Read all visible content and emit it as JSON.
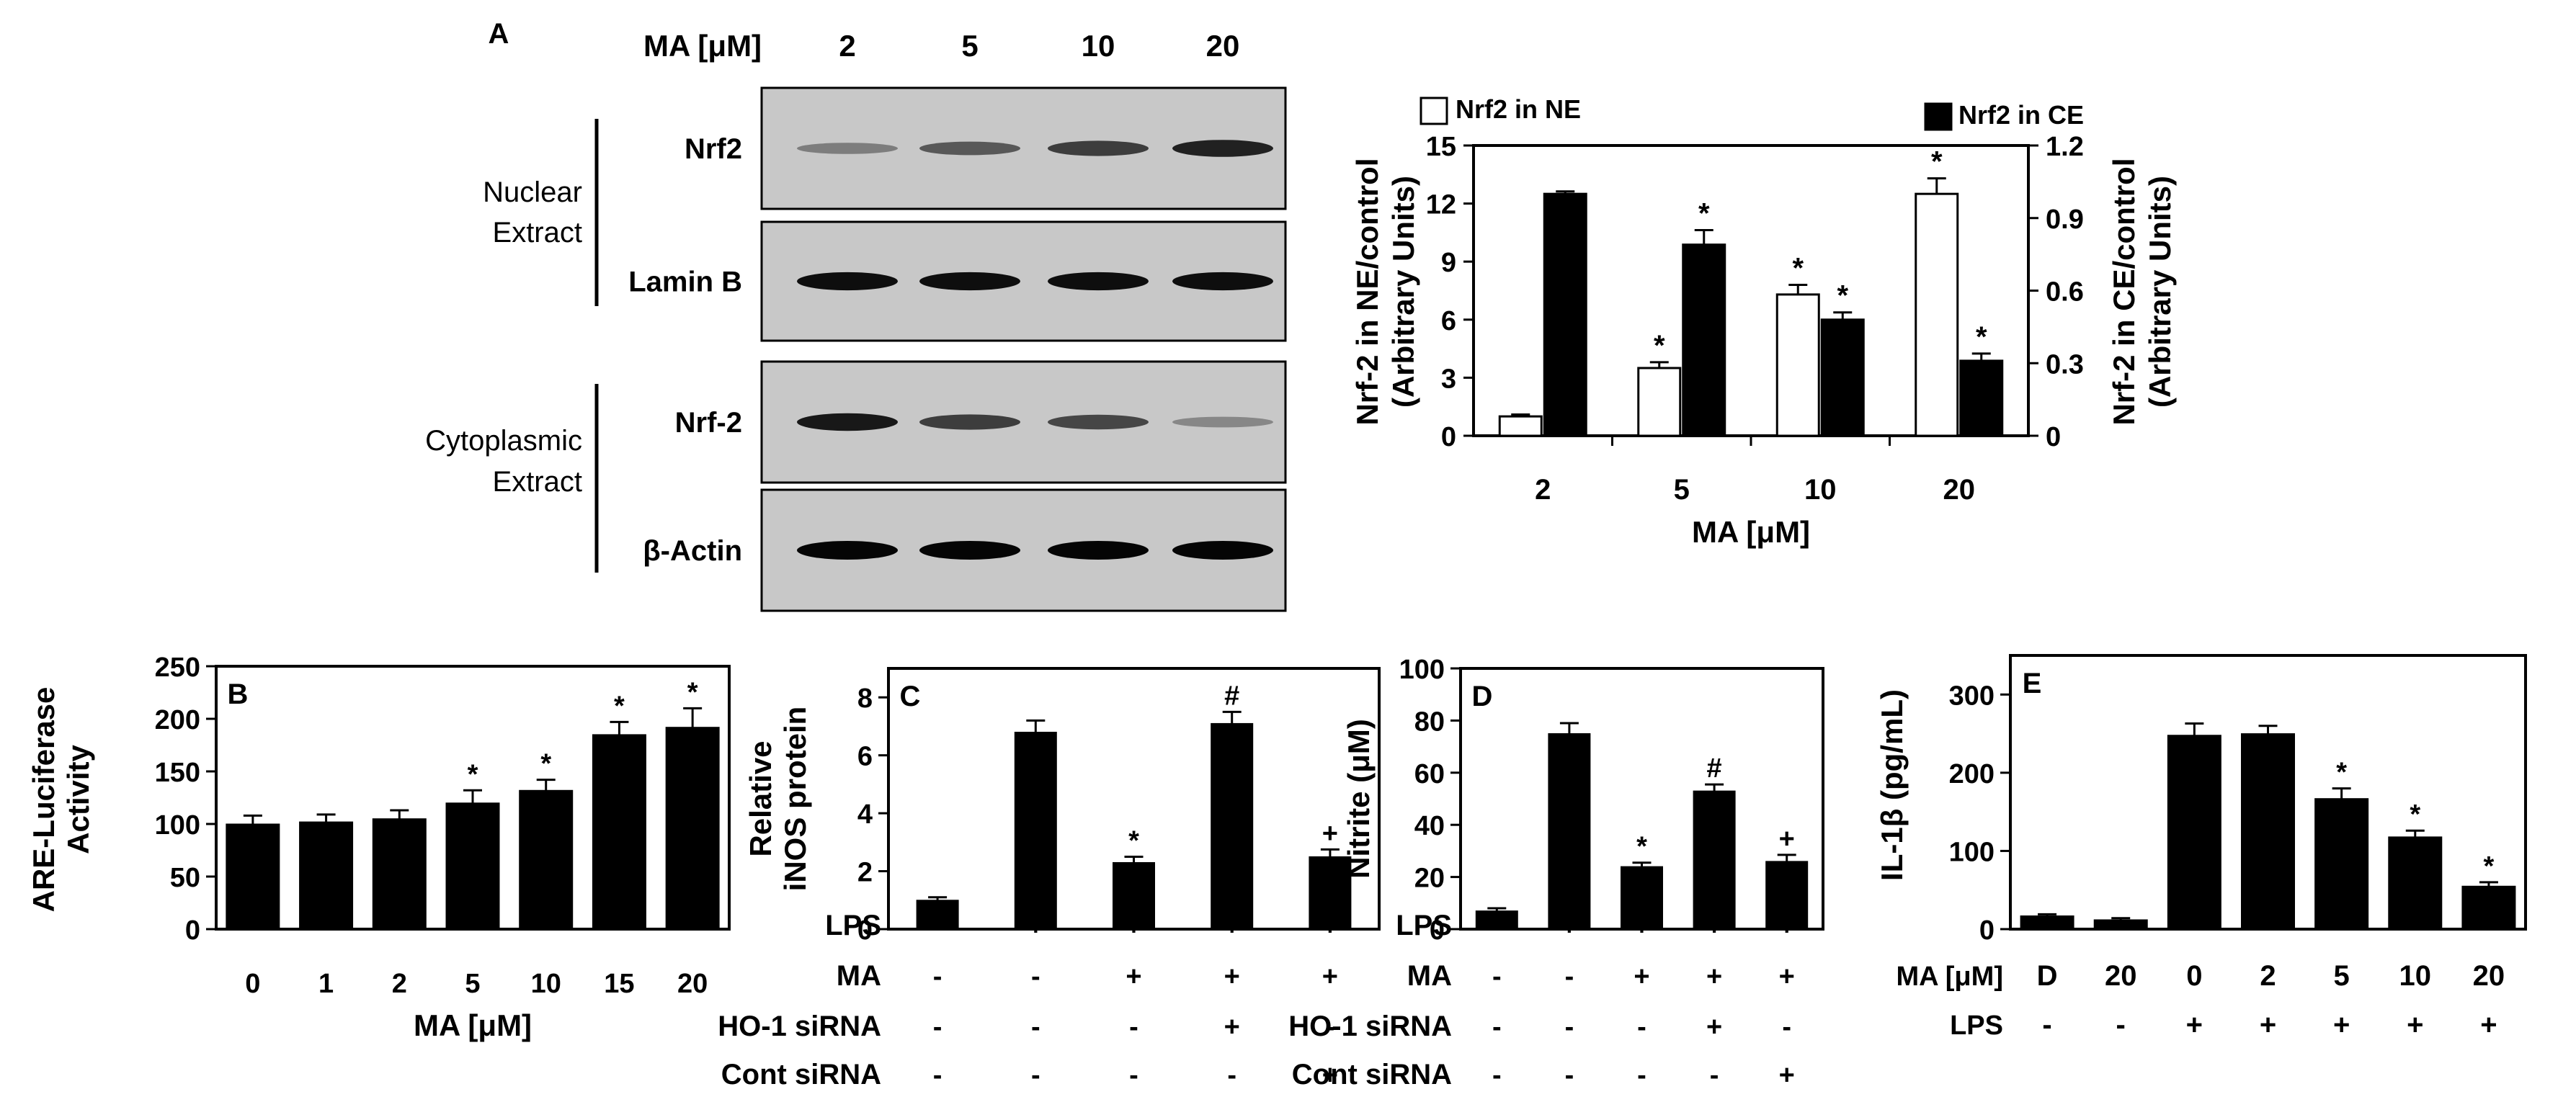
{
  "panel_a": {
    "label": "A",
    "lane_header_label": "MA [μM]",
    "lanes": [
      "2",
      "5",
      "10",
      "20"
    ],
    "nuclear_group": [
      "Nuclear",
      "Extract"
    ],
    "cyto_group": [
      "Cytoplasmic",
      "Extract"
    ],
    "blots": [
      {
        "label": "Nrf2",
        "intensity": [
          0.35,
          0.55,
          0.7,
          0.85
        ]
      },
      {
        "label": "Lamin B",
        "intensity": [
          0.95,
          0.95,
          0.95,
          0.95
        ]
      },
      {
        "label": "Nrf-2",
        "intensity": [
          0.9,
          0.7,
          0.65,
          0.3
        ]
      },
      {
        "label": "β-Actin",
        "intensity": [
          1.0,
          1.0,
          1.0,
          1.0
        ]
      }
    ]
  },
  "chart_data": [
    {
      "type": "bar",
      "id": "nrf2",
      "xlabel": "MA [μM]",
      "categories": [
        "2",
        "5",
        "10",
        "20"
      ],
      "ylabel_left": [
        "Nrf-2 in NE/control",
        "(Arbitrary Units)"
      ],
      "ylabel_right": [
        "Nrf-2 in CE/control",
        "(Arbitrary Units)"
      ],
      "ylim_left": [
        0,
        15
      ],
      "yticks_left": [
        "0",
        "3",
        "6",
        "9",
        "12",
        "15"
      ],
      "ylim_right": [
        0,
        1.2
      ],
      "yticks_right": [
        "0",
        "0.3",
        "0.6",
        "0.9",
        "1.2"
      ],
      "series": [
        {
          "name": "Nrf2 in NE",
          "axis": "left",
          "fill": "#ffffff",
          "values": [
            1.0,
            3.5,
            7.3,
            12.5
          ],
          "errors": [
            0.1,
            0.3,
            0.5,
            0.8
          ],
          "sig": [
            "",
            "*",
            "*",
            "*"
          ]
        },
        {
          "name": "Nrf2 in CE",
          "axis": "right",
          "fill": "#000000",
          "values": [
            1.0,
            0.79,
            0.48,
            0.31
          ],
          "errors": [
            0.01,
            0.06,
            0.03,
            0.03
          ],
          "sig": [
            "",
            "*",
            "*",
            "*"
          ]
        }
      ]
    },
    {
      "type": "bar",
      "id": "B",
      "panel_label": "B",
      "ylabel": [
        "ARE-Luciferase",
        "Activity"
      ],
      "xlabel": "MA [μM]",
      "categories": [
        "0",
        "1",
        "2",
        "5",
        "10",
        "15",
        "20"
      ],
      "values": [
        100,
        102,
        105,
        120,
        132,
        185,
        192
      ],
      "errors": [
        8,
        7,
        8,
        12,
        10,
        12,
        18
      ],
      "sig": [
        "",
        "",
        "",
        "*",
        "*",
        "*",
        "*"
      ],
      "ylim": [
        0,
        250
      ],
      "yticks": [
        "0",
        "50",
        "100",
        "150",
        "200",
        "250"
      ]
    },
    {
      "type": "bar",
      "id": "C",
      "panel_label": "C",
      "ylabel": [
        "Relative",
        "iNOS protein"
      ],
      "values": [
        1.0,
        6.8,
        2.3,
        7.1,
        2.5
      ],
      "errors": [
        0.1,
        0.4,
        0.2,
        0.4,
        0.25
      ],
      "sig": [
        "",
        "",
        "*",
        "#",
        "+"
      ],
      "ylim": [
        0,
        9
      ],
      "yticks": [
        "0",
        "2",
        "4",
        "6",
        "8"
      ],
      "treatments": [
        {
          "label": "LPS",
          "signs": [
            "-",
            "+",
            "+",
            "+",
            "+"
          ]
        },
        {
          "label": "MA",
          "signs": [
            "-",
            "-",
            "+",
            "+",
            "+"
          ]
        },
        {
          "label": "HO-1 siRNA",
          "signs": [
            "-",
            "-",
            "-",
            "+",
            "-"
          ]
        },
        {
          "label": "Cont siRNA",
          "signs": [
            "-",
            "-",
            "-",
            "-",
            "+"
          ]
        }
      ]
    },
    {
      "type": "bar",
      "id": "D",
      "panel_label": "D",
      "ylabel": [
        "Nitrite (μM)"
      ],
      "values": [
        7,
        75,
        24,
        53,
        26
      ],
      "errors": [
        1,
        4,
        1.5,
        2.5,
        2.5
      ],
      "sig": [
        "",
        "",
        "*",
        "#",
        "+"
      ],
      "ylim": [
        0,
        100
      ],
      "yticks": [
        "0",
        "20",
        "40",
        "60",
        "80",
        "100"
      ],
      "treatments": [
        {
          "label": "LPS",
          "signs": [
            "-",
            "+",
            "+",
            "+",
            "+"
          ]
        },
        {
          "label": "MA",
          "signs": [
            "-",
            "-",
            "+",
            "+",
            "+"
          ]
        },
        {
          "label": "HO-1 siRNA",
          "signs": [
            "-",
            "-",
            "-",
            "+",
            "-"
          ]
        },
        {
          "label": "Cont siRNA",
          "signs": [
            "-",
            "-",
            "-",
            "-",
            "+"
          ]
        }
      ]
    },
    {
      "type": "bar",
      "id": "E",
      "panel_label": "E",
      "ylabel": [
        "IL-1β (pg/mL)"
      ],
      "values": [
        17,
        12,
        248,
        250,
        167,
        118,
        55
      ],
      "errors": [
        2,
        2,
        15,
        10,
        13,
        8,
        5
      ],
      "sig": [
        "",
        "",
        "",
        "",
        "*",
        "*",
        "*"
      ],
      "ylim": [
        0,
        350
      ],
      "yticks": [
        "0",
        "100",
        "200",
        "300"
      ],
      "treatments": [
        {
          "label": "MA [μM]",
          "signs": [
            "D",
            "20",
            "0",
            "2",
            "5",
            "10",
            "20"
          ]
        },
        {
          "label": "LPS",
          "signs": [
            "-",
            "-",
            "+",
            "+",
            "+",
            "+",
            "+"
          ]
        }
      ]
    }
  ]
}
